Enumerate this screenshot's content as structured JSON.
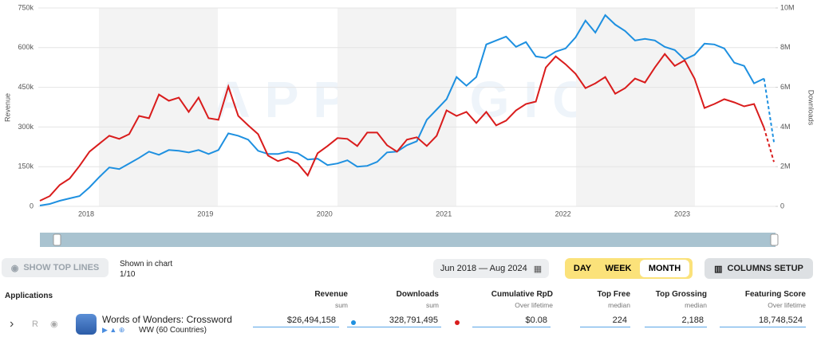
{
  "chart_data": {
    "type": "line",
    "y_label": "Revenue",
    "y2_label": "Downloads",
    "watermark": "APPMAGIC",
    "categories": [
      null,
      null,
      null,
      null,
      null,
      null,
      null,
      null,
      null,
      null,
      null,
      null,
      null,
      null,
      null,
      null,
      null,
      null,
      null,
      null,
      null,
      null,
      null,
      null,
      null,
      null,
      null,
      null,
      null,
      null,
      null,
      null,
      null,
      null,
      null,
      null,
      null,
      null,
      null,
      null,
      null,
      null,
      null,
      null,
      null,
      null,
      null,
      null,
      null,
      null,
      null,
      null,
      null,
      null,
      null,
      null,
      null,
      null,
      null,
      null,
      null,
      null,
      null,
      null,
      null,
      null,
      null,
      null,
      null,
      null,
      null,
      null,
      null,
      null,
      null
    ],
    "xticks": [
      "2018",
      "2019",
      "2020",
      "2021",
      "2022",
      "2023"
    ],
    "ylim": [
      0,
      750000
    ],
    "yticks": [
      0,
      {
        "value": 150000,
        "label": "150k"
      },
      {
        "value": 300000,
        "label": "300k"
      },
      {
        "value": 450000,
        "label": "450k"
      },
      {
        "value": 600000,
        "label": "600k"
      },
      {
        "value": 750000,
        "label": "750k"
      }
    ],
    "y2lim": [
      0,
      10000000
    ],
    "y2ticks": [
      0,
      {
        "value": 2000000,
        "label": "2M"
      },
      {
        "value": 4000000,
        "label": "4M"
      },
      {
        "value": 6000000,
        "label": "6M"
      },
      {
        "value": 8000000,
        "label": "8M"
      },
      {
        "value": 10000000,
        "label": "10M"
      }
    ],
    "grid": true,
    "series": [
      {
        "name": "Revenue",
        "color": "#1e90e0",
        "values": [
          3000,
          9000,
          21000,
          30000,
          39000,
          72000,
          111000,
          147000,
          141000,
          162000,
          183000,
          207000,
          195000,
          213000,
          210000,
          204000,
          213000,
          198000,
          213000,
          276000,
          267000,
          252000,
          210000,
          198000,
          198000,
          207000,
          201000,
          177000,
          180000,
          156000,
          162000,
          174000,
          150000,
          153000,
          168000,
          204000,
          207000,
          231000,
          246000,
          327000,
          366000,
          405000,
          489000,
          456000,
          489000,
          612000,
          627000,
          642000,
          603000,
          621000,
          567000,
          561000,
          585000,
          597000,
          639000,
          702000,
          657000,
          723000,
          687000,
          663000,
          627000,
          633000,
          627000,
          603000,
          591000,
          555000,
          573000,
          615000,
          612000,
          597000,
          543000,
          531000,
          465000,
          483000,
          243000
        ]
      },
      {
        "name": "Downloads",
        "color": "#d91c1c",
        "axis": "y2",
        "values": [
          280000,
          520000,
          1080000,
          1400000,
          2040000,
          2760000,
          3160000,
          3560000,
          3400000,
          3640000,
          4560000,
          4440000,
          5640000,
          5320000,
          5480000,
          4760000,
          5480000,
          4440000,
          4360000,
          6040000,
          4560000,
          4080000,
          3640000,
          2560000,
          2280000,
          2440000,
          2160000,
          1560000,
          2680000,
          3040000,
          3440000,
          3400000,
          3040000,
          3720000,
          3720000,
          3080000,
          2760000,
          3360000,
          3480000,
          3040000,
          3560000,
          4840000,
          4560000,
          4760000,
          4200000,
          4760000,
          4080000,
          4320000,
          4840000,
          5160000,
          5280000,
          7000000,
          7560000,
          7160000,
          6680000,
          5960000,
          6200000,
          6520000,
          5680000,
          5960000,
          6440000,
          6240000,
          7000000,
          7680000,
          7080000,
          7360000,
          6440000,
          4960000,
          5160000,
          5400000,
          5240000,
          5040000,
          5160000,
          3960000,
          2240000
        ]
      }
    ]
  },
  "controls": {
    "show_top_lines": "SHOW TOP LINES",
    "shown_in_chart": "Shown in chart",
    "shown_count": "1/10",
    "date_range": "Jun 2018 — Aug 2024",
    "periods": [
      "DAY",
      "WEEK",
      "MONTH"
    ],
    "columns_setup": "COLUMNS SETUP"
  },
  "table": {
    "first_column": "Applications",
    "columns": [
      {
        "title": "Revenue",
        "sub": "sum"
      },
      {
        "title": "Downloads",
        "sub": "sum"
      },
      {
        "title": "Cumulative RpD",
        "sub": "Over lifetime"
      },
      {
        "title": "Top Free",
        "sub": "median"
      },
      {
        "title": "Top Grossing",
        "sub": "median"
      },
      {
        "title": "Featuring Score",
        "sub": "Over lifetime"
      }
    ],
    "rows": [
      {
        "rank": "R",
        "name": "Words of Wonders: Crossword",
        "region": "WW (60 Countries)",
        "cells": [
          "$26,494,158",
          "328,791,495",
          "$0.08",
          "224",
          "2,188",
          "18,748,524"
        ]
      }
    ]
  }
}
